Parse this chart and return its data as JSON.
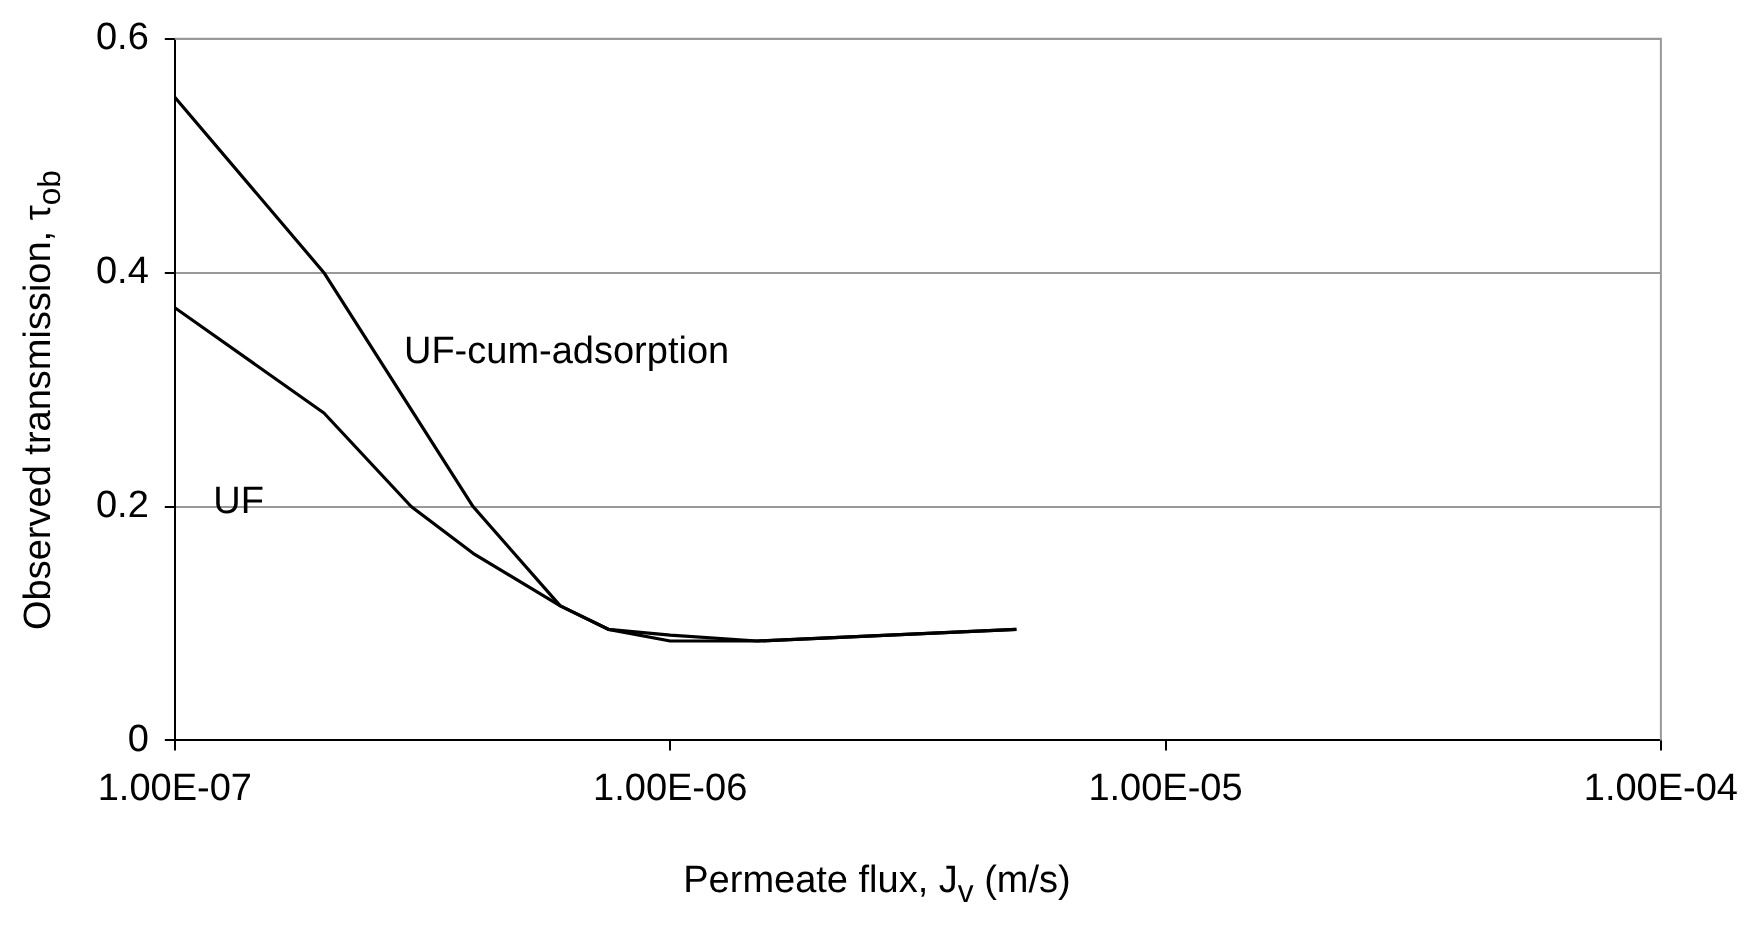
{
  "chart_data": {
    "type": "line",
    "xlabel": "Permeate flux, J$_{v}$ (m/s)",
    "ylabel": "Observed transmission,  τ$_{ob}$",
    "log": "x",
    "xlim": [
      1e-07,
      0.0001
    ],
    "xticks": [
      {
        "value": 1e-07,
        "label": "1.00E-07"
      },
      {
        "value": 1e-06,
        "label": "1.00E-06"
      },
      {
        "value": 1e-05,
        "label": "1.00E-05"
      },
      {
        "value": 0.0001,
        "label": "1.00E-04"
      }
    ],
    "ylim": [
      0,
      0.6
    ],
    "yticks": [
      0,
      0.2,
      0.4,
      0.6
    ],
    "grid": "y",
    "marker": "none",
    "line_style": "solid",
    "series": [
      {
        "name": "UF-cum-adsorption",
        "color": "#000000",
        "x": [
          1e-07,
          2e-07,
          4e-07,
          6e-07,
          7.5e-07,
          1e-06,
          1.5e-06,
          5e-06
        ],
        "values": [
          0.55,
          0.4,
          0.2,
          0.115,
          0.095,
          0.085,
          0.085,
          0.095
        ]
      },
      {
        "name": "UF",
        "color": "#000000",
        "x": [
          1e-07,
          2e-07,
          3e-07,
          4e-07,
          6e-07,
          7.5e-07,
          1e-06,
          1.5e-06,
          5e-06
        ],
        "values": [
          0.37,
          0.28,
          0.2,
          0.16,
          0.115,
          0.095,
          0.09,
          0.085,
          0.095
        ]
      }
    ]
  }
}
